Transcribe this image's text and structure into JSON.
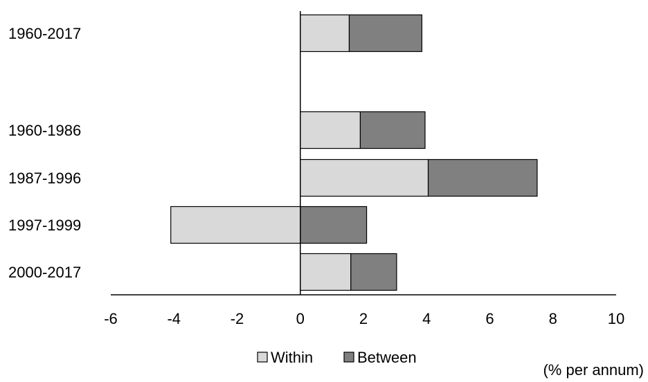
{
  "chart_data": {
    "type": "bar",
    "orientation": "horizontal",
    "stacked": true,
    "categories": [
      "1960-2017",
      "",
      "1960-1986",
      "1987-1996",
      "1997-1999",
      "2000-2017"
    ],
    "series": [
      {
        "name": "Within",
        "values": [
          1.55,
          null,
          1.9,
          4.05,
          -4.1,
          1.6
        ],
        "color": "#d9d9d9"
      },
      {
        "name": "Between",
        "values": [
          2.3,
          null,
          2.05,
          3.45,
          2.1,
          1.45
        ],
        "color": "#808080"
      }
    ],
    "xlim": [
      -6,
      10
    ],
    "xticks": [
      "-6",
      "-4",
      "-2",
      "0",
      "2",
      "4",
      "6",
      "8",
      "10"
    ],
    "unit_label": "(% per annum)",
    "grid": false,
    "legend_position": "bottom"
  }
}
